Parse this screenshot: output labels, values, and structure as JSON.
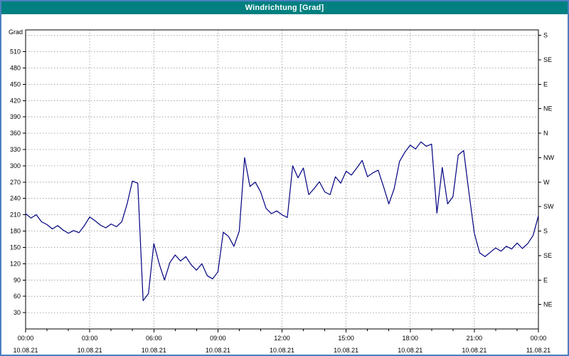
{
  "window": {
    "title": "Windrichtung [Grad]"
  },
  "colors": {
    "frame": "#4a80c0",
    "titlebar_bg": "#008080",
    "titlebar_text": "#ffffff",
    "plot_bg": "#ffffff",
    "grid": "#909090",
    "axis": "#000000",
    "series_line": "#000080",
    "tick_text": "#000000"
  },
  "chart_data": {
    "type": "line",
    "title": "Windrichtung [Grad]",
    "legend": "none",
    "grid": {
      "horizontal_step_deg": 30,
      "vertical_step_hours": 3,
      "dashed": true
    },
    "y_left": {
      "label": "Grad",
      "min": 0,
      "max": 550,
      "ticks": [
        30,
        60,
        90,
        120,
        150,
        180,
        210,
        240,
        270,
        300,
        330,
        360,
        390,
        420,
        450,
        480,
        510
      ]
    },
    "y_right": {
      "ticks": [
        {
          "deg": 45,
          "label": "NE"
        },
        {
          "deg": 90,
          "label": "E"
        },
        {
          "deg": 135,
          "label": "SE"
        },
        {
          "deg": 180,
          "label": "S"
        },
        {
          "deg": 225,
          "label": "SW"
        },
        {
          "deg": 270,
          "label": "W"
        },
        {
          "deg": 315,
          "label": "NW"
        },
        {
          "deg": 360,
          "label": "N"
        },
        {
          "deg": 405,
          "label": "NE"
        },
        {
          "deg": 450,
          "label": "E"
        },
        {
          "deg": 495,
          "label": "SE"
        },
        {
          "deg": 540,
          "label": "S"
        }
      ]
    },
    "x": {
      "min_hours": 0,
      "max_hours": 24,
      "minor_tick_hours": 1,
      "major_ticks": [
        {
          "hours": 0,
          "time": "00:00",
          "date": "10.08.21"
        },
        {
          "hours": 3,
          "time": "03:00",
          "date": "10.08.21"
        },
        {
          "hours": 6,
          "time": "06:00",
          "date": "10.08.21"
        },
        {
          "hours": 9,
          "time": "09:00",
          "date": "10.08.21"
        },
        {
          "hours": 12,
          "time": "12:00",
          "date": "10.08.21"
        },
        {
          "hours": 15,
          "time": "15:00",
          "date": "10.08.21"
        },
        {
          "hours": 18,
          "time": "18:00",
          "date": "10.08.21"
        },
        {
          "hours": 21,
          "time": "21:00",
          "date": "10.08.21"
        },
        {
          "hours": 24,
          "time": "00:00",
          "date": "11.08.21"
        }
      ]
    },
    "series": [
      {
        "name": "Windrichtung",
        "unit": "Grad",
        "sample_interval_hours": 0.25,
        "start_hours": 0,
        "values": [
          212,
          204,
          210,
          197,
          192,
          184,
          190,
          182,
          176,
          181,
          177,
          190,
          206,
          199,
          191,
          186,
          193,
          188,
          197,
          230,
          272,
          268,
          52,
          65,
          157,
          120,
          90,
          122,
          136,
          125,
          133,
          118,
          108,
          120,
          98,
          92,
          105,
          178,
          170,
          152,
          180,
          315,
          262,
          270,
          252,
          222,
          212,
          217,
          210,
          205,
          300,
          278,
          296,
          247,
          258,
          271,
          252,
          247,
          280,
          268,
          290,
          283,
          296,
          310,
          280,
          287,
          292,
          262,
          230,
          258,
          308,
          325,
          338,
          331,
          344,
          336,
          340,
          213,
          297,
          230,
          243,
          320,
          328,
          250,
          176,
          140,
          133,
          141,
          149,
          143,
          152,
          147,
          158,
          148,
          157,
          172,
          208
        ]
      }
    ]
  }
}
